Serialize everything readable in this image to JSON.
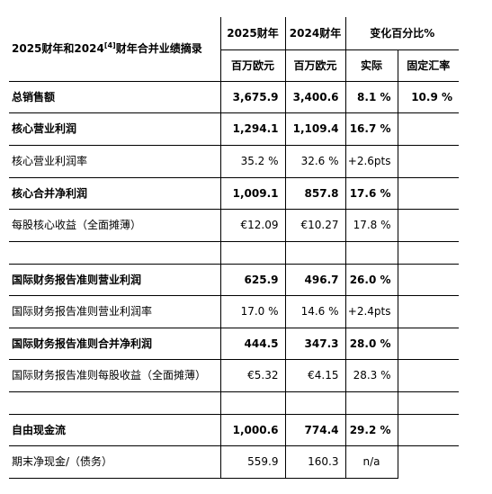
{
  "table": {
    "title_prefix": "2025财年和2024",
    "title_sup": "[4]",
    "title_suffix": "财年合并业绩摘录",
    "headers": {
      "fy2025": "2025财年",
      "fy2024": "2024财年",
      "change": "变化百分比%",
      "unit2025": "百万欧元",
      "unit2024": "百万欧元",
      "actual": "实际",
      "fx": "固定汇率"
    },
    "rows": [
      {
        "label": "总销售额",
        "bold": true,
        "v2025": "3,675.9",
        "v2024": "3,400.6",
        "actual": "8.1 %",
        "fx": "10.9 %"
      },
      {
        "label": "核心营业利润",
        "bold": true,
        "v2025": "1,294.1",
        "v2024": "1,109.4",
        "actual": "16.7 %",
        "fx": ""
      },
      {
        "label": "核心营业利润率",
        "bold": false,
        "v2025": "35.2 %",
        "v2024": "32.6 %",
        "actual": "+2.6pts",
        "fx": ""
      },
      {
        "label": "核心合并净利润",
        "bold": true,
        "v2025": "1,009.1",
        "v2024": "857.8",
        "actual": "17.6 %",
        "fx": ""
      },
      {
        "label": "每股核心收益（全面摊薄）",
        "bold": false,
        "v2025": "€12.09",
        "v2024": "€10.27",
        "actual": "17.8 %",
        "fx": ""
      },
      {
        "label": "国际财务报告准则营业利润",
        "bold": true,
        "v2025": "625.9",
        "v2024": "496.7",
        "actual": "26.0 %",
        "fx": ""
      },
      {
        "label": "国际财务报告准则营业利润率",
        "bold": false,
        "v2025": "17.0 %",
        "v2024": "14.6 %",
        "actual": "+2.4pts",
        "fx": ""
      },
      {
        "label": "国际财务报告准则合并净利润",
        "bold": true,
        "v2025": "444.5",
        "v2024": "347.3",
        "actual": "28.0 %",
        "fx": ""
      },
      {
        "label": "国际财务报告准则每股收益（全面摊薄）",
        "bold": false,
        "v2025": "€5.32",
        "v2024": "€4.15",
        "actual": "28.3 %",
        "fx": ""
      },
      {
        "label": "自由现金流",
        "bold": true,
        "v2025": "1,000.6",
        "v2024": "774.4",
        "actual": "29.2 %",
        "fx": ""
      },
      {
        "label": "期末净现金/（债务）",
        "bold": false,
        "v2025": "559.9",
        "v2024": "160.3",
        "actual": "n/a",
        "fx": ""
      }
    ]
  }
}
